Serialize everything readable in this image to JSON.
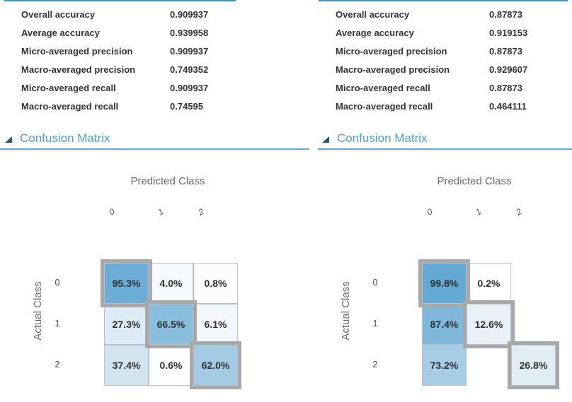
{
  "colors": {
    "panel_top_border": "#3a99bb",
    "section_title_blue": "#4e9bd0",
    "section_divider_blue": "#64a9d4",
    "collapse_triangle": "#1f5877",
    "cell_border": "#b9c0c7",
    "highlight_border": "#a8a8a8",
    "text_dark": "#333333",
    "axis_text_gray": "#6b6b6b"
  },
  "panels": [
    {
      "metrics": [
        {
          "label": "Overall accuracy",
          "value": "0.909937"
        },
        {
          "label": "Average accuracy",
          "value": "0.939958"
        },
        {
          "label": "Micro-averaged precision",
          "value": "0.909937"
        },
        {
          "label": "Macro-averaged precision",
          "value": "0.749352"
        },
        {
          "label": "Micro-averaged recall",
          "value": "0.909937"
        },
        {
          "label": "Macro-averaged recall",
          "value": "0.74595"
        }
      ],
      "section_title": "Confusion Matrix",
      "x_axis_title": "Predicted Class",
      "y_axis_title": "Actual Class",
      "matrix": {
        "columns": [
          "0",
          "1",
          "2"
        ],
        "rows": [
          {
            "label": "0",
            "cells": [
              {
                "text": "95.3%",
                "bg": "#6badd5",
                "cls": "highlight"
              },
              {
                "text": "4.0%",
                "bg": "#f7fafd",
                "cls": ""
              },
              {
                "text": "0.8%",
                "bg": "#fafcfe",
                "cls": ""
              }
            ]
          },
          {
            "label": "1",
            "cells": [
              {
                "text": "27.3%",
                "bg": "#dcebf5",
                "cls": ""
              },
              {
                "text": "66.5%",
                "bg": "#89bfdd",
                "cls": "highlight"
              },
              {
                "text": "6.1%",
                "bg": "#f2f7fb",
                "cls": ""
              }
            ]
          },
          {
            "label": "2",
            "cells": [
              {
                "text": "37.4%",
                "bg": "#d3e5f1",
                "cls": ""
              },
              {
                "text": "0.6%",
                "bg": "#fdfeff",
                "cls": ""
              },
              {
                "text": "62.0%",
                "bg": "#a3cce4",
                "cls": "highlight"
              }
            ]
          }
        ]
      }
    },
    {
      "metrics": [
        {
          "label": "Overall accuracy",
          "value": "0.87873"
        },
        {
          "label": "Average accuracy",
          "value": "0.919153"
        },
        {
          "label": "Micro-averaged precision",
          "value": "0.87873"
        },
        {
          "label": "Macro-averaged precision",
          "value": "0.929607"
        },
        {
          "label": "Micro-averaged recall",
          "value": "0.87873"
        },
        {
          "label": "Macro-averaged recall",
          "value": "0.464111"
        }
      ],
      "section_title": "Confusion Matrix",
      "x_axis_title": "Predicted Class",
      "y_axis_title": "Actual Class",
      "matrix": {
        "columns": [
          "0",
          "1",
          "2"
        ],
        "rows": [
          {
            "label": "0",
            "cells": [
              {
                "text": "99.8%",
                "bg": "#64a9d3",
                "cls": "highlight"
              },
              {
                "text": "0.2%",
                "bg": "#ffffff",
                "cls": ""
              },
              {
                "text": "",
                "bg": "",
                "cls": "empty"
              }
            ]
          },
          {
            "label": "1",
            "cells": [
              {
                "text": "87.4%",
                "bg": "#7db8da",
                "cls": ""
              },
              {
                "text": "12.6%",
                "bg": "#e9f1f8",
                "cls": "highlight"
              },
              {
                "text": "",
                "bg": "",
                "cls": "empty"
              }
            ]
          },
          {
            "label": "2",
            "cells": [
              {
                "text": "73.2%",
                "bg": "#a6cde5",
                "cls": ""
              },
              {
                "text": "",
                "bg": "",
                "cls": "empty"
              },
              {
                "text": "26.8%",
                "bg": "#e0edf5",
                "cls": "highlight"
              }
            ]
          }
        ]
      }
    }
  ],
  "chart_data": [
    {
      "type": "heatmap",
      "title": "Confusion Matrix (left model)",
      "xlabel": "Predicted Class",
      "ylabel": "Actual Class",
      "x": [
        "0",
        "1",
        "2"
      ],
      "y": [
        "0",
        "1",
        "2"
      ],
      "values_percent": [
        [
          95.3,
          4.0,
          0.8
        ],
        [
          27.3,
          66.5,
          6.1
        ],
        [
          37.4,
          0.6,
          62.0
        ]
      ],
      "highlighted_diagonal": true
    },
    {
      "type": "heatmap",
      "title": "Confusion Matrix (right model)",
      "xlabel": "Predicted Class",
      "ylabel": "Actual Class",
      "x": [
        "0",
        "1",
        "2"
      ],
      "y": [
        "0",
        "1",
        "2"
      ],
      "values_percent": [
        [
          99.8,
          0.2,
          0
        ],
        [
          87.4,
          12.6,
          0
        ],
        [
          73.2,
          0,
          26.8
        ]
      ],
      "highlighted_diagonal": true
    }
  ]
}
